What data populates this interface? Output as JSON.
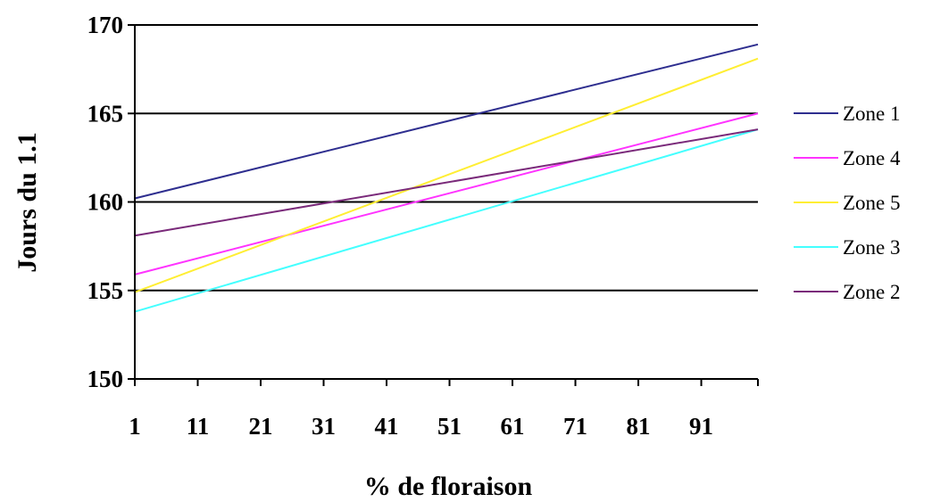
{
  "chart_data": {
    "type": "line",
    "title": "",
    "xlabel": "% de floraison",
    "ylabel": "Jours du 1.1",
    "x_ticks": [
      "1",
      "11",
      "21",
      "31",
      "41",
      "51",
      "61",
      "71",
      "81",
      "91"
    ],
    "x_range": [
      1,
      100
    ],
    "ylim": [
      150,
      170
    ],
    "y_ticks": [
      "150",
      "155",
      "160",
      "165",
      "170"
    ],
    "grid": "horizontal major gridlines",
    "legend_position": "right",
    "x": [
      1,
      100
    ],
    "series": [
      {
        "name": "Zone 1",
        "color": "#2e2e8f",
        "values": [
          160.2,
          168.9
        ]
      },
      {
        "name": "Zone 4",
        "color": "#ff33ff",
        "values": [
          155.9,
          165.0
        ]
      },
      {
        "name": "Zone 5",
        "color": "#ffee33",
        "values": [
          154.9,
          168.1
        ]
      },
      {
        "name": "Zone 3",
        "color": "#44ffff",
        "values": [
          153.8,
          164.1
        ]
      },
      {
        "name": "Zone 2",
        "color": "#7a2a7a",
        "values": [
          158.1,
          164.1
        ]
      }
    ]
  }
}
